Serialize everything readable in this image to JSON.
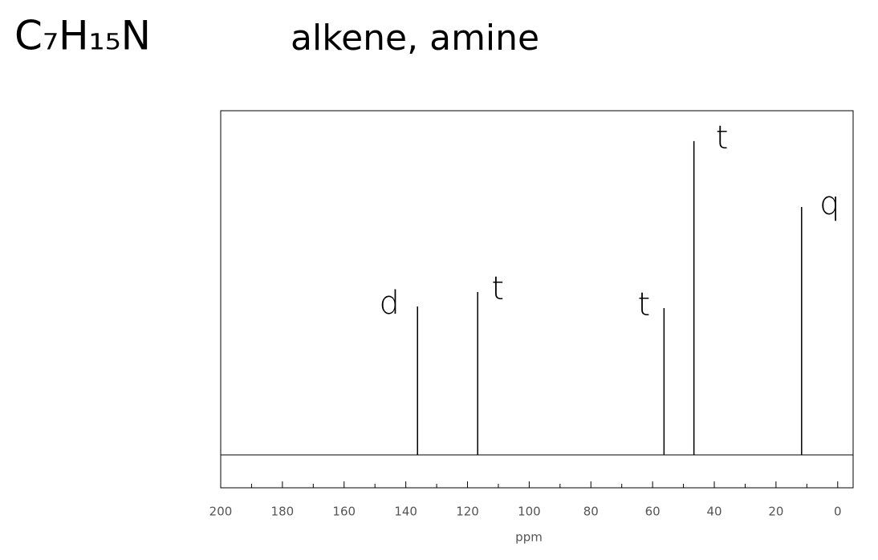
{
  "chart_data": {
    "type": "spectrum",
    "title": "C₇H₁₅N",
    "subtitle": "alkene, amine",
    "xlabel": "ppm",
    "x": [
      136.2,
      116.7,
      56.3,
      46.6,
      11.7
    ],
    "values": [
      47.3,
      51.9,
      46.8,
      100,
      79.0
    ],
    "labels": [
      "d",
      "t",
      "t",
      "t",
      "q"
    ],
    "color": "#000000",
    "xlim": [
      200,
      -5
    ],
    "ylim": [
      -10.5,
      109.7
    ],
    "xticks": [
      200,
      180,
      160,
      140,
      120,
      100,
      80,
      60,
      40,
      20,
      0
    ],
    "xminorticks": [
      190,
      170,
      150,
      130,
      110,
      90,
      70,
      50,
      30,
      10
    ]
  }
}
